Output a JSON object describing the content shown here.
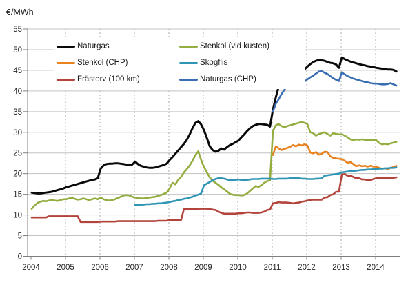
{
  "chart_data": {
    "type": "line",
    "unit_label": "€/MWh",
    "x_axis": {
      "tick_years": [
        2004,
        2005,
        2006,
        2007,
        2008,
        2009,
        2010,
        2011,
        2012,
        2013,
        2014
      ],
      "start_year": 2004,
      "months_shown": 128,
      "gridlines": "dashed-vertical"
    },
    "y_axis": {
      "min": 0,
      "max": 55,
      "step": 5,
      "ticks": [
        0,
        5,
        10,
        15,
        20,
        25,
        30,
        35,
        40,
        45,
        50,
        55
      ],
      "gridlines": "solid-horizontal"
    },
    "legend": {
      "position": "inside-top-left",
      "columns": [
        [
          "Naturgas",
          "Stenkol (CHP)",
          "Frästorv (100 km)"
        ],
        [
          "Stenkol (vid kusten)",
          "Skogflis",
          "Naturgas (CHP)"
        ]
      ]
    },
    "series": [
      {
        "name": "Naturgas",
        "color": "#0a0a0a",
        "start_month_index": 0,
        "values": [
          15.4,
          15.3,
          15.2,
          15.2,
          15.3,
          15.4,
          15.5,
          15.6,
          15.8,
          16.0,
          16.2,
          16.4,
          16.7,
          16.9,
          17.1,
          17.3,
          17.5,
          17.7,
          17.9,
          18.1,
          18.3,
          18.5,
          18.6,
          18.9,
          21.2,
          22.0,
          22.3,
          22.4,
          22.4,
          22.5,
          22.5,
          22.4,
          22.3,
          22.2,
          22.1,
          22.2,
          22.9,
          22.3,
          21.9,
          21.7,
          21.5,
          21.4,
          21.4,
          21.5,
          21.7,
          21.9,
          22.1,
          22.4,
          23.3,
          24.0,
          24.8,
          25.6,
          26.4,
          27.2,
          28.2,
          29.5,
          31.0,
          32.3,
          32.7,
          31.9,
          30.5,
          28.6,
          26.6,
          25.7,
          25.3,
          25.5,
          26.1,
          25.8,
          26.4,
          26.9,
          27.2,
          27.6,
          28.0,
          28.8,
          29.5,
          30.3,
          31.0,
          31.5,
          31.8,
          32.0,
          32.0,
          31.9,
          31.8,
          31.4,
          35.5,
          38.5,
          41.0,
          43.5,
          44.3,
          44.7,
          44.8,
          44.8,
          44.8,
          44.8,
          44.6,
          45.2,
          45.9,
          46.5,
          47.0,
          47.3,
          47.5,
          47.4,
          47.3,
          47.0,
          46.8,
          46.7,
          46.4,
          45.6,
          48.1,
          47.7,
          47.4,
          47.1,
          46.9,
          46.7,
          46.5,
          46.3,
          46.2,
          46.0,
          45.9,
          45.8,
          45.6,
          45.5,
          45.4,
          45.3,
          45.2,
          45.2,
          45.1,
          44.7
        ]
      },
      {
        "name": "Stenkol (CHP)",
        "color": "#e8821f",
        "start_month_index": 84,
        "values": [
          24.5,
          26.6,
          26.1,
          25.7,
          26.0,
          26.2,
          26.5,
          26.9,
          26.6,
          27.0,
          26.8,
          27.1,
          26.8,
          25.1,
          24.9,
          25.2,
          24.6,
          24.8,
          25.3,
          25.2,
          24.2,
          23.8,
          23.7,
          23.6,
          23.5,
          23.1,
          22.6,
          22.8,
          22.3,
          21.8,
          22.0,
          21.8,
          21.9,
          21.7,
          21.9,
          21.7,
          21.7,
          21.4,
          21.2,
          21.3,
          21.1,
          21.4,
          21.6,
          21.9
        ]
      },
      {
        "name": "Frästorv (100 km)",
        "color": "#b2443c",
        "start_month_index": 0,
        "values": [
          9.4,
          9.4,
          9.4,
          9.4,
          9.4,
          9.4,
          9.7,
          9.7,
          9.7,
          9.7,
          9.7,
          9.7,
          9.7,
          9.7,
          9.7,
          9.7,
          9.7,
          8.3,
          8.3,
          8.3,
          8.3,
          8.3,
          8.3,
          8.3,
          8.4,
          8.4,
          8.4,
          8.4,
          8.4,
          8.4,
          8.5,
          8.5,
          8.5,
          8.5,
          8.5,
          8.5,
          8.5,
          8.5,
          8.5,
          8.5,
          8.5,
          8.5,
          8.5,
          8.5,
          8.6,
          8.6,
          8.6,
          8.6,
          8.8,
          8.8,
          8.8,
          8.8,
          8.8,
          11.4,
          11.4,
          11.4,
          11.4,
          11.4,
          11.5,
          11.5,
          11.5,
          11.5,
          11.4,
          11.3,
          11.2,
          10.8,
          10.5,
          10.3,
          10.3,
          10.3,
          10.3,
          10.3,
          10.4,
          10.4,
          10.5,
          10.6,
          10.6,
          10.5,
          10.5,
          10.5,
          10.6,
          10.8,
          11.2,
          11.3,
          12.8,
          12.9,
          13.1,
          13.0,
          13.0,
          13.0,
          12.9,
          12.8,
          12.9,
          13.0,
          13.2,
          13.3,
          13.5,
          13.6,
          13.7,
          13.7,
          13.7,
          13.7,
          14.2,
          14.3,
          14.8,
          15.0,
          15.6,
          15.6,
          19.8,
          19.9,
          19.5,
          19.5,
          19.2,
          18.9,
          18.9,
          18.6,
          18.6,
          18.4,
          18.5,
          18.7,
          18.9,
          18.9,
          19.0,
          19.0,
          19.0,
          19.0,
          19.0,
          19.1
        ]
      },
      {
        "name": "Stenkol (vid kusten)",
        "color": "#94ad40",
        "start_month_index": 0,
        "values": [
          11.5,
          12.3,
          12.9,
          13.2,
          13.4,
          13.3,
          13.5,
          13.6,
          13.5,
          13.4,
          13.6,
          13.8,
          13.8,
          14.0,
          14.2,
          13.9,
          13.7,
          13.8,
          14.0,
          13.8,
          13.6,
          13.8,
          14.0,
          13.8,
          14.2,
          13.8,
          13.6,
          13.5,
          13.6,
          13.8,
          14.1,
          14.4,
          14.7,
          14.8,
          14.7,
          14.4,
          14.2,
          14.1,
          14.0,
          14.0,
          14.1,
          14.2,
          14.3,
          14.4,
          14.6,
          14.8,
          15.1,
          15.4,
          16.4,
          17.8,
          17.4,
          18.5,
          19.2,
          20.3,
          21.1,
          22.0,
          23.1,
          24.5,
          25.4,
          23.3,
          21.6,
          20.3,
          19.1,
          18.3,
          17.8,
          17.3,
          16.7,
          16.2,
          15.7,
          15.1,
          14.9,
          14.8,
          14.8,
          14.7,
          14.8,
          15.2,
          15.8,
          16.4,
          17.0,
          16.8,
          17.2,
          17.8,
          18.2,
          18.4,
          30.3,
          31.7,
          32.0,
          31.5,
          31.2,
          31.5,
          31.7,
          31.9,
          32.1,
          32.3,
          32.5,
          32.3,
          32.0,
          30.0,
          29.8,
          29.2,
          29.6,
          29.8,
          30.0,
          29.6,
          29.2,
          29.8,
          29.6,
          29.5,
          29.5,
          29.2,
          28.8,
          28.3,
          28.1,
          28.3,
          28.2,
          28.3,
          28.2,
          28.1,
          28.2,
          28.1,
          28.1,
          27.4,
          27.1,
          27.2,
          27.1,
          27.3,
          27.5,
          27.7
        ]
      },
      {
        "name": "Skogflis",
        "color": "#3095b4",
        "start_month_index": 36,
        "values": [
          12.4,
          12.4,
          12.5,
          12.5,
          12.6,
          12.6,
          12.7,
          12.7,
          12.8,
          12.8,
          12.9,
          13.0,
          13.1,
          13.3,
          13.4,
          13.6,
          13.7,
          13.9,
          14.0,
          14.2,
          14.4,
          14.7,
          14.9,
          15.2,
          17.2,
          17.6,
          18.0,
          18.4,
          18.7,
          18.9,
          18.9,
          18.8,
          18.6,
          18.4,
          18.4,
          18.5,
          18.6,
          18.5,
          18.4,
          18.5,
          18.6,
          18.7,
          18.7,
          18.7,
          18.8,
          18.8,
          18.8,
          18.8,
          18.7,
          18.7,
          18.8,
          18.8,
          18.8,
          18.8,
          18.9,
          18.9,
          18.9,
          18.9,
          18.8,
          18.8,
          18.7,
          18.7,
          18.7,
          18.8,
          18.8,
          18.9,
          19.5,
          19.6,
          19.7,
          19.8,
          19.9,
          20.0,
          20.3,
          20.4,
          20.5,
          20.6,
          20.6,
          20.7,
          20.8,
          20.9,
          20.9,
          21.0,
          21.0,
          21.1,
          21.1,
          21.2,
          21.2,
          21.3,
          21.3,
          21.4,
          21.4,
          21.5
        ]
      },
      {
        "name": "Naturgas (CHP)",
        "color": "#3a6eb2",
        "start_month_index": 84,
        "values": [
          35.0,
          36.9,
          38.0,
          39.3,
          40.3,
          41.2,
          41.7,
          41.8,
          41.8,
          41.7,
          41.9,
          42.3,
          42.8,
          43.3,
          43.7,
          44.2,
          44.7,
          44.8,
          44.4,
          44.1,
          43.6,
          43.1,
          42.7,
          42.4,
          44.5,
          44.0,
          43.6,
          43.3,
          43.0,
          42.8,
          42.6,
          42.4,
          42.2,
          42.1,
          41.9,
          41.8,
          41.8,
          41.7,
          41.6,
          41.6,
          41.7,
          41.9,
          41.6,
          41.3
        ]
      }
    ]
  }
}
